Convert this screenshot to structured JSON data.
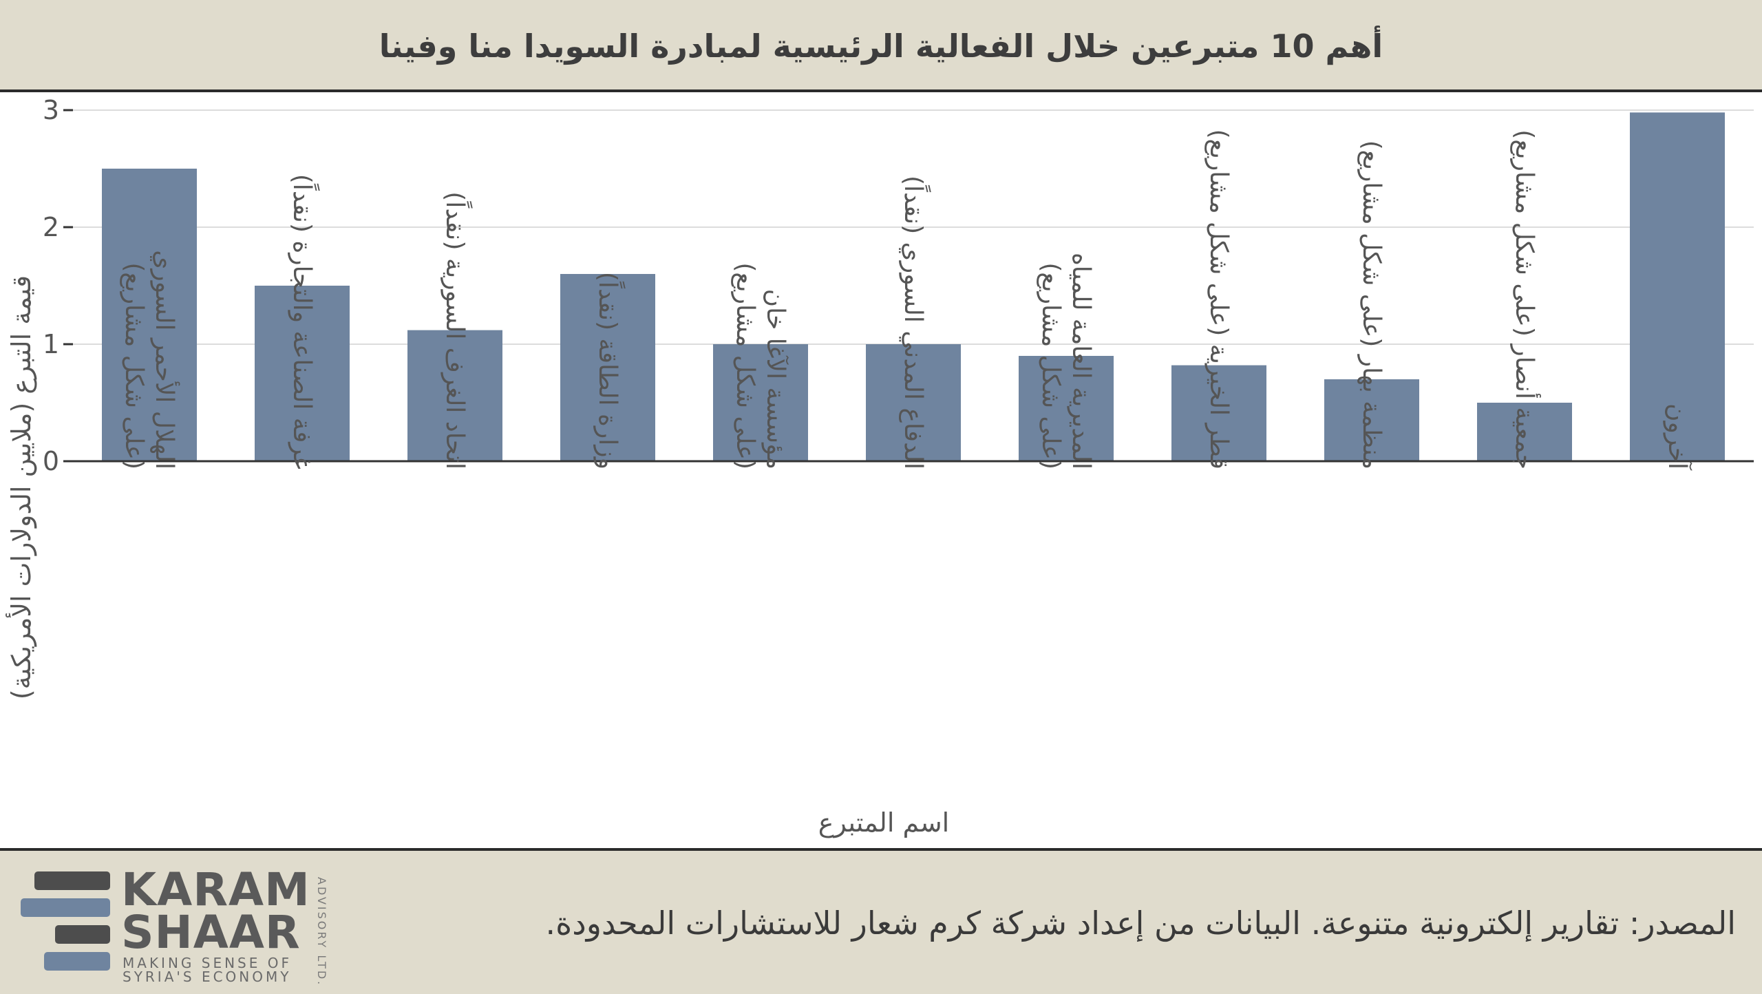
{
  "title": "أهم 10 متبرعين خلال الفعالية الرئيسية لمبادرة السويدا منا وفينا",
  "source": "المصدر: تقارير إلكترونية متنوعة. البيانات من إعداد شركة كرم شعار للاستشارات المحدودة.",
  "logo": {
    "line1": "KARAM",
    "line2": "SHAAR",
    "tag1": "MAKING SENSE OF",
    "tag2": "SYRIA'S ECONOMY",
    "side": "ADVISORY LTD."
  },
  "colors": {
    "header_bg": "#e0dccd",
    "bar": "#6f849f",
    "logo_dark": "#4d4d4d",
    "logo_blue": "#6f849f"
  },
  "chart_data": {
    "type": "bar",
    "xlabel": "اسم المتبرع",
    "ylabel": "قيمة التبرع (ملايين الدولارات الأمريكية)",
    "ylim": [
      0,
      3
    ],
    "yticks": [
      0,
      1,
      2,
      3
    ],
    "grid": true,
    "categories": [
      [
        "الهلال الأحمر السوري",
        "(على شكل مشاريع)"
      ],
      [
        "غرفة الصناعة والتجارة (نقداً)"
      ],
      [
        "اتحاد الغرف السورية (نقداً)"
      ],
      [
        "وزارة الطاقة (نقداً)"
      ],
      [
        "مؤسسة الآغا خان",
        "(على شكل مشاريع)"
      ],
      [
        "الدفاع المدني السوري (نقداً)"
      ],
      [
        "المديرية العامة للمياه",
        "(على شكل مشاريع)"
      ],
      [
        "قطر الخيرية (على شكل مشاريع)"
      ],
      [
        "منظمة بهار (على شكل مشاريع)"
      ],
      [
        "جمعية أنصار (على شكل مشاريع)"
      ],
      [
        "آخرون"
      ]
    ],
    "values": [
      2.5,
      1.5,
      1.12,
      1.6,
      1.0,
      1.0,
      0.9,
      0.82,
      0.7,
      0.5,
      2.98
    ]
  }
}
